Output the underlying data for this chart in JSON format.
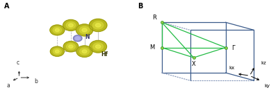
{
  "panel_A_label": "A",
  "panel_B_label": "B",
  "Hf_color": "#b8b820",
  "Hf_highlight": "#e0e060",
  "Hf_edge": "#7a7a00",
  "N_color": "#9999cc",
  "N_edge": "#5555aa",
  "axis_color": "#333333",
  "crystal_edge_color": "#aaaaaa",
  "bz_solid_color": "#3a5a8a",
  "bz_dash_color": "#8899bb",
  "green_line": "#22bb44",
  "node_color": "#88cc44",
  "node_edge": "#228822",
  "kx_label": "kx",
  "ky_label": "ky",
  "kz_label": "kz",
  "hf_label": "Hf",
  "n_label": "N",
  "a_label": "a",
  "b_label": "b",
  "c_label": "c"
}
